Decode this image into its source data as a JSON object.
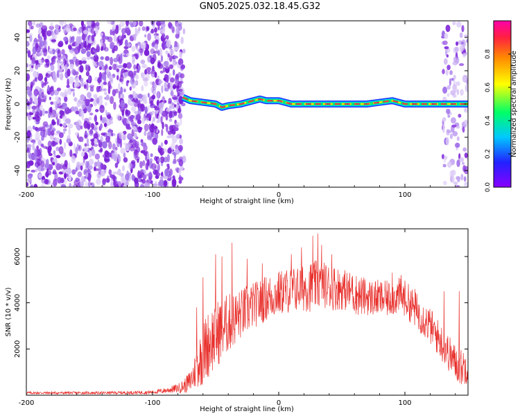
{
  "title": "GN05.2025.032.18.45.G32",
  "colors": {
    "background": "#ffffff",
    "axis": "#000000",
    "snr_line": "#e8302c",
    "speckle": "#7a1fd6",
    "track_core": "#e8304c",
    "track_mid": "#00e676",
    "track_outer": "#1f33ff",
    "colorbar_stops": [
      "#8800ff",
      "#2222ff",
      "#00c8ff",
      "#00ff66",
      "#ffff00",
      "#ff8800",
      "#ff2040",
      "#ff00aa"
    ]
  },
  "chart_data": [
    {
      "type": "heatmap",
      "xlabel": "Height of straight line (km)",
      "ylabel": "Frequency (Hz)",
      "xlim": [
        -200,
        150
      ],
      "ylim": [
        -50,
        50
      ],
      "xticks": [
        -200,
        -100,
        0,
        100
      ],
      "xtick_labels": [
        "-200",
        "-100",
        "0",
        "100"
      ],
      "yticks": [
        -40,
        -20,
        0,
        20,
        40
      ],
      "ytick_labels": [
        "-40",
        "-20",
        "0",
        "20",
        "40"
      ],
      "noise_region_x": [
        -200,
        -75
      ],
      "noise_region_right_x": [
        130,
        150
      ],
      "track": {
        "x_start": -76,
        "x_end": 150,
        "points": [
          [
            -76,
            4
          ],
          [
            -70,
            2
          ],
          [
            -60,
            1
          ],
          [
            -50,
            0
          ],
          [
            -45,
            -2
          ],
          [
            -40,
            -1
          ],
          [
            -30,
            0
          ],
          [
            -20,
            2
          ],
          [
            -15,
            3
          ],
          [
            -10,
            2
          ],
          [
            0,
            2
          ],
          [
            10,
            0
          ],
          [
            20,
            0
          ],
          [
            30,
            0
          ],
          [
            40,
            0
          ],
          [
            50,
            0
          ],
          [
            60,
            0
          ],
          [
            70,
            0
          ],
          [
            80,
            1
          ],
          [
            90,
            2
          ],
          [
            100,
            0
          ],
          [
            110,
            0
          ],
          [
            120,
            0
          ],
          [
            130,
            0
          ],
          [
            140,
            0
          ],
          [
            150,
            0
          ]
        ]
      },
      "colorbar": {
        "label": "Normalized spectral amplitude",
        "range": [
          0,
          1
        ],
        "ticks": [
          0.0,
          0.2,
          0.4,
          0.6,
          0.8
        ],
        "tick_labels": [
          "0.0",
          "0.2",
          "0.4",
          "0.6",
          "0.8"
        ]
      }
    },
    {
      "type": "line",
      "xlabel": "Height of straight line (km)",
      "ylabel": "SNR (10 * v/v)",
      "xlim": [
        -200,
        150
      ],
      "ylim": [
        0,
        7200
      ],
      "xticks": [
        -200,
        -100,
        0,
        100
      ],
      "xtick_labels": [
        "-200",
        "-100",
        "0",
        "100"
      ],
      "yticks": [
        2000,
        4000,
        6000
      ],
      "ytick_labels": [
        "2000",
        "4000",
        "6000"
      ],
      "series": [
        {
          "x": [
            -200,
            -180,
            -160,
            -140,
            -120,
            -100,
            -90,
            -80,
            -75,
            -70,
            -65,
            -60,
            -55,
            -50,
            -45,
            -40,
            -35,
            -30,
            -25,
            -20,
            -15,
            -10,
            -5,
            0,
            5,
            10,
            15,
            20,
            25,
            30,
            35,
            40,
            45,
            50,
            55,
            60,
            65,
            70,
            75,
            80,
            85,
            90,
            95,
            100,
            105,
            110,
            115,
            120,
            125,
            130,
            135,
            140,
            145,
            150
          ],
          "y": [
            100,
            100,
            100,
            100,
            110,
            130,
            200,
            300,
            400,
            600,
            1200,
            1800,
            2300,
            2600,
            2900,
            3100,
            3300,
            3500,
            3700,
            3900,
            4000,
            4200,
            4300,
            4400,
            4500,
            4550,
            4600,
            4700,
            4700,
            4750,
            4800,
            4700,
            4650,
            4600,
            4500,
            4400,
            4300,
            4250,
            4200,
            4200,
            4150,
            4200,
            4300,
            4200,
            3900,
            3600,
            3300,
            3000,
            2600,
            2200,
            1800,
            1400,
            1200,
            1300
          ],
          "noise_amp": [
            60,
            60,
            60,
            60,
            70,
            80,
            120,
            200,
            300,
            500,
            900,
            1400,
            1500,
            1500,
            1400,
            1300,
            1200,
            1100,
            1100,
            1000,
            1000,
            1000,
            1000,
            1000,
            1000,
            1000,
            1000,
            1100,
            1100,
            1100,
            1000,
            1000,
            1000,
            900,
            900,
            900,
            900,
            800,
            800,
            800,
            800,
            800,
            800,
            800,
            800,
            800,
            800,
            800,
            800,
            800,
            800,
            800,
            800,
            800
          ],
          "peaks": [
            [
              -65,
              3800
            ],
            [
              -60,
              5100
            ],
            [
              -50,
              6100
            ],
            [
              -45,
              6000
            ],
            [
              -37,
              6600
            ],
            [
              -25,
              5900
            ],
            [
              -13,
              5700
            ],
            [
              10,
              6100
            ],
            [
              18,
              6400
            ],
            [
              27,
              6900
            ],
            [
              31,
              7000
            ],
            [
              34,
              6500
            ],
            [
              42,
              6100
            ],
            [
              58,
              5100
            ],
            [
              90,
              5300
            ],
            [
              97,
              5200
            ],
            [
              108,
              4600
            ],
            [
              131,
              4500
            ],
            [
              143,
              4500
            ]
          ]
        }
      ]
    }
  ]
}
